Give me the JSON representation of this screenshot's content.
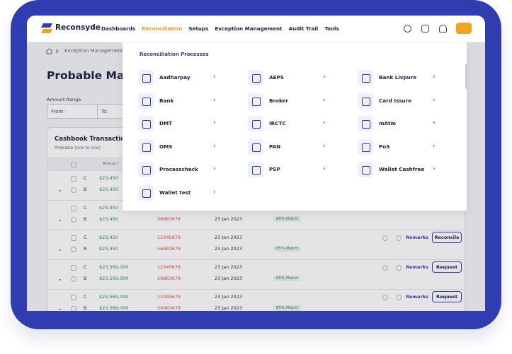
{
  "nav": {
    "brand": "Reconsyde",
    "links": [
      "Dashboards",
      "Reconciliation",
      "Setups",
      "Exception Management",
      "Audit Trail",
      "Tools"
    ],
    "active": 1
  },
  "breadcrumb": "Exception Management",
  "page": {
    "title": "Probable Matchi"
  },
  "filters": {
    "label": "Amount Range",
    "from": "From:",
    "to": "To:"
  },
  "card": {
    "title": "Cashbook Transactions",
    "subtitle": "Probable (one to one)"
  },
  "table": {
    "header": [
      "Amount"
    ],
    "rows": [
      {
        "lines": [
          {
            "type": "C",
            "amount": "$23,450"
          },
          {
            "type": "B",
            "amount": "$23,450"
          }
        ]
      },
      {
        "lines": [
          {
            "type": "C",
            "amount": "$23,450"
          },
          {
            "type": "B",
            "amount": "$23,450",
            "ref": "56983678",
            "date": "23 Jan 2023",
            "match": "85% Match"
          }
        ]
      },
      {
        "lines": [
          {
            "type": "C",
            "amount": "$23,450",
            "ref": "12345678",
            "date": "23 Jan 2023"
          },
          {
            "type": "B",
            "amount": "$23,450",
            "ref": "56983678",
            "date": "23 Jan 2023",
            "match": "85% Match"
          }
        ],
        "remarks": "Remarks",
        "action": "Reconcile"
      },
      {
        "lines": [
          {
            "type": "C",
            "amount": "$23,569,000",
            "ref": "12345678",
            "date": "23 Jan 2023"
          },
          {
            "type": "B",
            "amount": "$23,569,000",
            "ref": "56983678",
            "date": "23 Jan 2023",
            "match": "85% Match"
          }
        ],
        "remarks": "Remarks",
        "action": "Request"
      },
      {
        "lines": [
          {
            "type": "C",
            "amount": "$23,569,000",
            "ref": "12345678",
            "date": "23 Jan 2023"
          },
          {
            "type": "B",
            "amount": "$23,569,000",
            "ref": "56983678",
            "date": "23 Jan 2023",
            "match": "85% Match"
          }
        ],
        "remarks": "Remarks",
        "action": "Request"
      }
    ]
  },
  "dropdown": {
    "title": "Reconciliation Processes",
    "items": [
      "Aadharpay",
      "AEPS",
      "Bank Livpure",
      "Bank",
      "Broker",
      "Card Issure",
      "DMT",
      "IRCTC",
      "mAtm",
      "OMS",
      "PAN",
      "PoS",
      "Processcheck",
      "PSP",
      "Wallet Cashfree",
      "Wallet test"
    ]
  }
}
